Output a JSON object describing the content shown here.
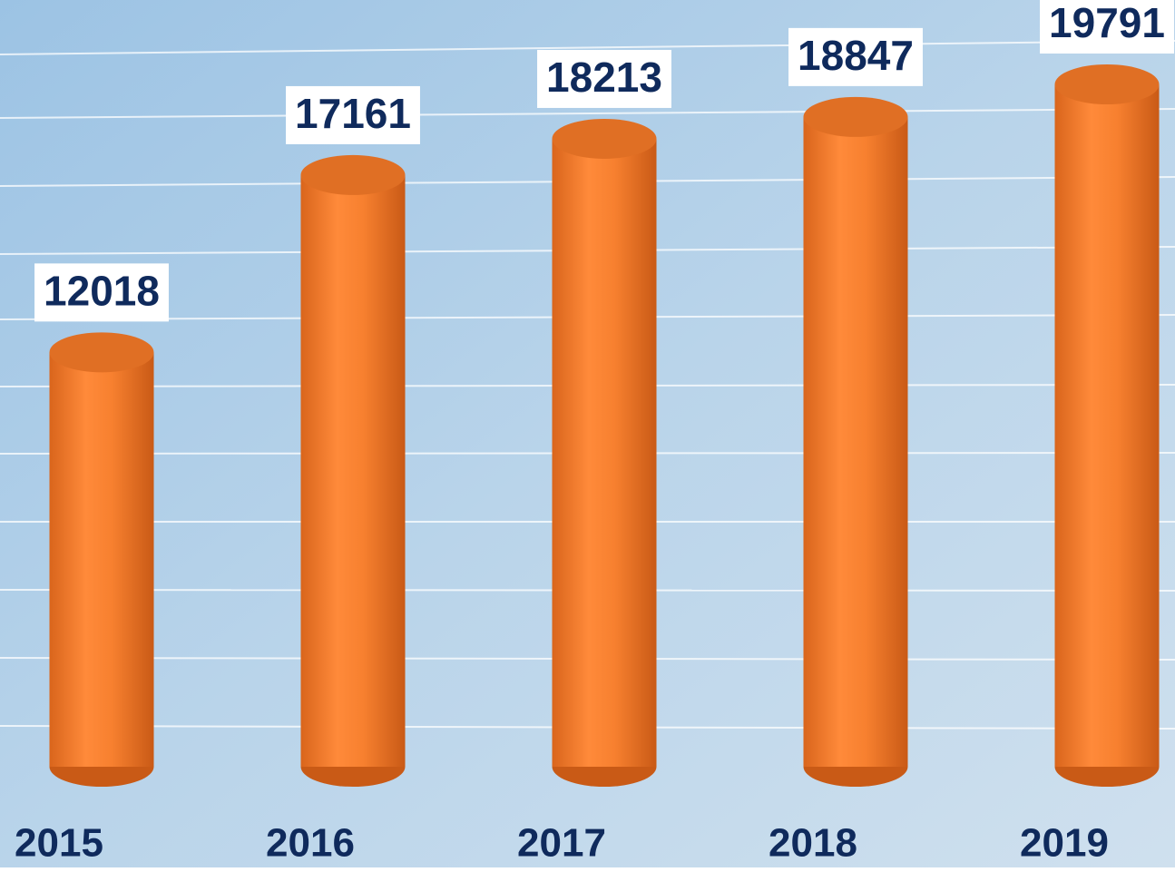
{
  "chart_data": {
    "type": "bar",
    "categories": [
      "2015",
      "2016",
      "2017",
      "2018",
      "2019"
    ],
    "values": [
      12018,
      17161,
      18213,
      18847,
      19791
    ],
    "color": "#f4832f",
    "label_color": "#0f2a5c"
  }
}
